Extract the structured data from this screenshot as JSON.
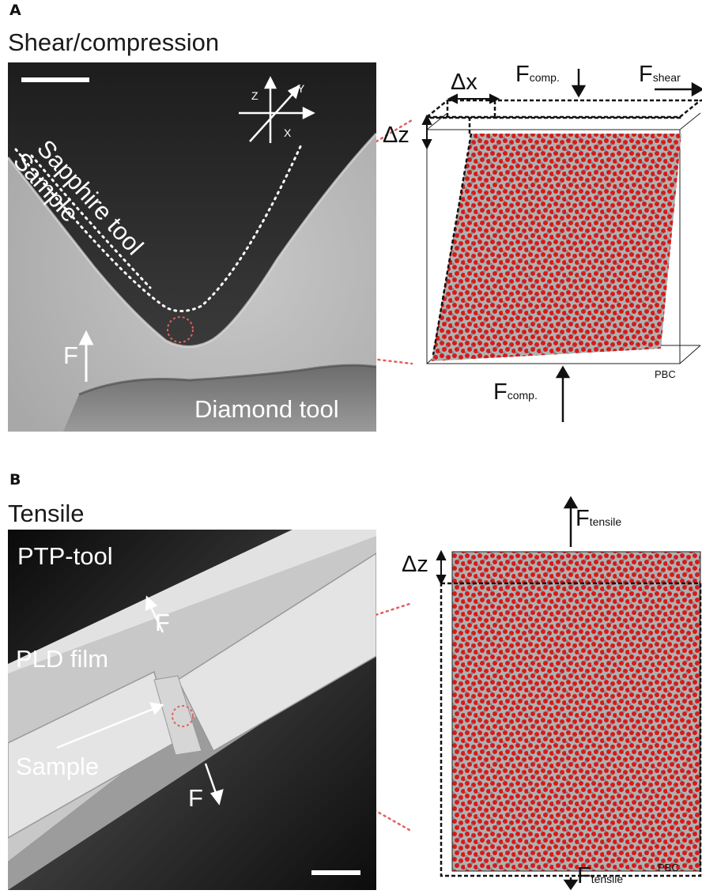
{
  "panelA": {
    "letter": "A",
    "title": "Shear/compression",
    "image_labels": {
      "sapphire_tool": "Sapphire tool",
      "sample": "Sample",
      "diamond_tool": "Diamond tool",
      "force": "F"
    },
    "axes": {
      "z": "Z",
      "y": "Y",
      "x": "X"
    },
    "sim": {
      "dx": "Δx",
      "dz": "Δz",
      "f_comp": "F",
      "f_comp_sub": "comp.",
      "f_shear": "F",
      "f_shear_sub": "shear",
      "pbc": "PBC"
    },
    "colors": {
      "atom": "#d61a1a",
      "bond": "#9a9a9a",
      "guide": "#e06060"
    }
  },
  "panelB": {
    "letter": "B",
    "title": "Tensile",
    "image_labels": {
      "ptp_tool": "PTP-tool",
      "pld_film": "PLD film",
      "sample": "Sample",
      "force_top": "F",
      "force_bottom": "F"
    },
    "sim": {
      "dz": "Δz",
      "f_top": "F",
      "f_top_sub": "tensile",
      "f_bottom": "F",
      "f_bottom_sub": "tensile",
      "pbc": "PBC"
    }
  }
}
